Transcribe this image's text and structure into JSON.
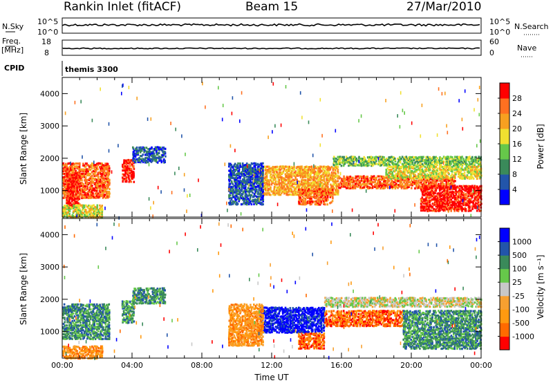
{
  "header": {
    "title": "Rankin Inlet (fitACF)",
    "beam": "Beam 15",
    "date": "27/Mar/2010"
  },
  "strips": {
    "nsky_label": "N.Sky",
    "nsky_ticks": [
      "10^5",
      "10^0"
    ],
    "nsearch_label": "N.Search",
    "nsearch_ticks": [
      "10^5",
      "10^0"
    ],
    "freq_label": "Freq.",
    "freq_unit": "[MHz]",
    "freq_ticks": [
      "18",
      "8"
    ],
    "nave_label": "Nave",
    "nave_ticks": [
      "60",
      "0"
    ],
    "cpid_label": "CPID",
    "cpid_value": "themis 3300"
  },
  "chart_data": [
    {
      "type": "heatmap",
      "name": "power-panel",
      "xlabel": "",
      "ylabel": "Slant Range [km]",
      "xlim": [
        0,
        24
      ],
      "ylim": [
        180,
        4500
      ],
      "yticks": [
        1000,
        2000,
        3000,
        4000
      ],
      "colorbar": {
        "label": "Power [dB]",
        "ticks": [
          "28",
          "24",
          "20",
          "16",
          "12",
          "8",
          "4"
        ],
        "colors": [
          "#0000ff",
          "#2255aa",
          "#3a8a5a",
          "#66c84a",
          "#f0e030",
          "#f7a020",
          "#ff7020",
          "#ff0000"
        ]
      },
      "blobs": [
        {
          "t0": 0.0,
          "t1": 2.7,
          "r0": 800,
          "r1": 1900,
          "c": 6
        },
        {
          "t0": 0.2,
          "t1": 1.0,
          "r0": 500,
          "r1": 1600,
          "c": 7
        },
        {
          "t0": 0.0,
          "t1": 2.3,
          "r0": 200,
          "r1": 600,
          "c": 4
        },
        {
          "t0": 3.4,
          "t1": 4.1,
          "r0": 1300,
          "r1": 2000,
          "c": 7
        },
        {
          "t0": 4.0,
          "t1": 5.9,
          "r0": 1900,
          "r1": 2400,
          "c": 1
        },
        {
          "t0": 11.3,
          "t1": 15.8,
          "r0": 900,
          "r1": 1800,
          "c": 5
        },
        {
          "t0": 13.5,
          "t1": 15.5,
          "r0": 600,
          "r1": 1100,
          "c": 6
        },
        {
          "t0": 15.8,
          "t1": 22.5,
          "r0": 1100,
          "r1": 1500,
          "c": 6
        },
        {
          "t0": 15.5,
          "t1": 24.0,
          "r0": 1800,
          "r1": 2100,
          "c": 3
        },
        {
          "t0": 18.5,
          "t1": 24.0,
          "r0": 1400,
          "r1": 1800,
          "c": 4
        },
        {
          "t0": 20.5,
          "t1": 24.0,
          "r0": 400,
          "r1": 1200,
          "c": 7
        },
        {
          "t0": 9.5,
          "t1": 11.5,
          "r0": 600,
          "r1": 1900,
          "c": 1
        }
      ]
    },
    {
      "type": "heatmap",
      "name": "velocity-panel",
      "xlabel": "Time UT",
      "ylabel": "Slant Range [km]",
      "xlim": [
        0,
        24
      ],
      "ylim": [
        180,
        4500
      ],
      "xticks": [
        "00:00",
        "04:00",
        "08:00",
        "12:00",
        "16:00",
        "20:00",
        "00:00"
      ],
      "yticks": [
        1000,
        2000,
        3000,
        4000
      ],
      "colorbar": {
        "label": "Velocity [m s⁻¹]",
        "ticks": [
          "1000",
          "500",
          "100",
          "25",
          "-25",
          "-100",
          "-500",
          "-1000"
        ],
        "colors": [
          "#ff0000",
          "#ff6a00",
          "#ff9a10",
          "#f7a030",
          "#c8c8c8",
          "#66c84a",
          "#3a8a5a",
          "#2255aa",
          "#0000ff"
        ]
      },
      "blobs": [
        {
          "t0": 0.0,
          "t1": 2.7,
          "r0": 800,
          "r1": 1900,
          "c": 6
        },
        {
          "t0": 0.0,
          "t1": 2.3,
          "r0": 200,
          "r1": 600,
          "c": 2
        },
        {
          "t0": 3.4,
          "t1": 4.1,
          "r0": 1300,
          "r1": 2000,
          "c": 6
        },
        {
          "t0": 4.0,
          "t1": 5.9,
          "r0": 1900,
          "r1": 2400,
          "c": 6
        },
        {
          "t0": 11.3,
          "t1": 15.0,
          "r0": 1000,
          "r1": 1800,
          "c": 8
        },
        {
          "t0": 13.5,
          "t1": 15.0,
          "r0": 500,
          "r1": 1000,
          "c": 1
        },
        {
          "t0": 15.0,
          "t1": 19.5,
          "r0": 1200,
          "r1": 1700,
          "c": 1
        },
        {
          "t0": 15.0,
          "t1": 24.0,
          "r0": 1800,
          "r1": 2100,
          "c": 4
        },
        {
          "t0": 19.5,
          "t1": 24.0,
          "r0": 500,
          "r1": 1700,
          "c": 6
        },
        {
          "t0": 9.5,
          "t1": 11.5,
          "r0": 600,
          "r1": 1900,
          "c": 2
        }
      ]
    }
  ]
}
